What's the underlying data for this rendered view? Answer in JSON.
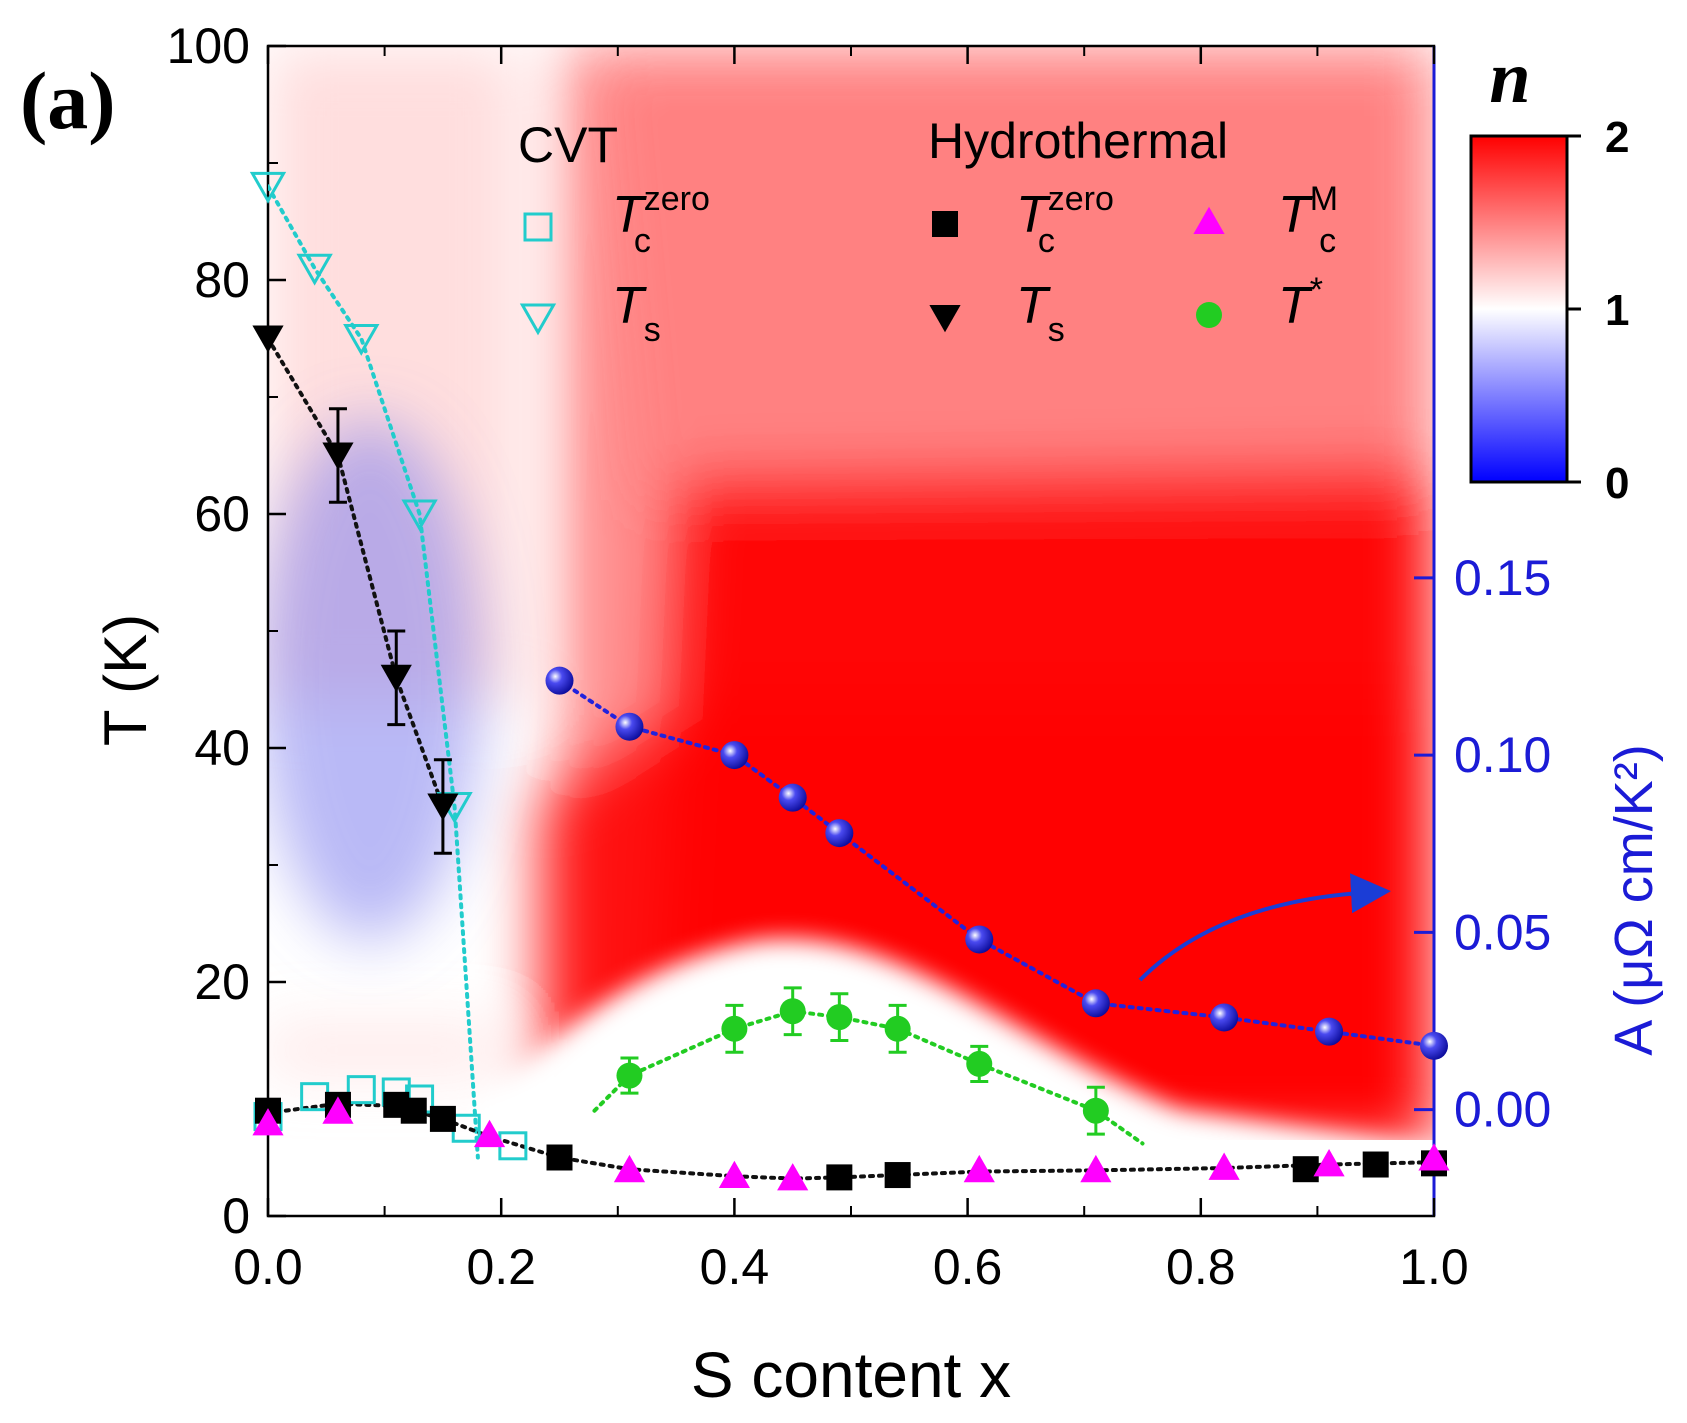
{
  "panel_label": "(a)",
  "chart_data": {
    "type": "scatter",
    "xlabel": "S content x",
    "ylabel_left": "T (K)",
    "ylabel_right": "A (μΩ cm/K²)",
    "xlim": [
      0.0,
      1.0
    ],
    "ylim_left": [
      0,
      100
    ],
    "ylim_right": [
      -0.03,
      0.3
    ],
    "x_ticks": [
      "0.0",
      "0.2",
      "0.4",
      "0.6",
      "0.8",
      "1.0"
    ],
    "y_ticks_left": [
      "0",
      "20",
      "40",
      "60",
      "80",
      "100"
    ],
    "y_ticks_right": [
      "0.00",
      "0.05",
      "0.10",
      "0.15"
    ],
    "colorbar": {
      "label": "n",
      "range": [
        0,
        2
      ],
      "ticks": [
        "0",
        "1",
        "2"
      ],
      "colors": [
        "#0000ff",
        "#ffffff",
        "#ff0000"
      ]
    },
    "legend": {
      "group_cvt": "CVT",
      "group_hydro": "Hydrothermal",
      "placement": "top"
    },
    "series": [
      {
        "key": "cvt_tc",
        "symbol": "T",
        "sub": "c",
        "sup": "zero",
        "marker": "open-square",
        "color": "#22cccc",
        "x": [
          0.0,
          0.04,
          0.08,
          0.11,
          0.13,
          0.17,
          0.21
        ],
        "y": [
          8.5,
          10.2,
          10.8,
          10.6,
          10.0,
          7.5,
          6.0
        ]
      },
      {
        "key": "cvt_ts",
        "symbol": "T",
        "sub": "s",
        "sup": "",
        "marker": "open-down-triangle",
        "color": "#22cccc",
        "x": [
          0.0,
          0.04,
          0.08,
          0.13,
          0.16
        ],
        "y": [
          88,
          81,
          75,
          60,
          35
        ]
      },
      {
        "key": "hydro_tc",
        "symbol": "T",
        "sub": "c",
        "sup": "zero",
        "marker": "filled-square",
        "color": "#000000",
        "x": [
          0.0,
          0.06,
          0.11,
          0.125,
          0.15,
          0.25,
          0.49,
          0.54,
          0.89,
          0.95,
          1.0
        ],
        "y": [
          9.0,
          9.5,
          9.5,
          9.0,
          8.3,
          5.0,
          3.3,
          3.5,
          4.0,
          4.4,
          4.5
        ]
      },
      {
        "key": "hydro_ts",
        "symbol": "T",
        "sub": "s",
        "sup": "",
        "marker": "filled-down-triangle",
        "color": "#000000",
        "x": [
          0.0,
          0.06,
          0.11,
          0.15
        ],
        "y": [
          75,
          65,
          46,
          35
        ],
        "yerr": [
          0,
          4,
          4,
          4
        ]
      },
      {
        "key": "hydro_tcm",
        "symbol": "T",
        "sub": "c",
        "sup": "M",
        "marker": "filled-up-triangle",
        "color": "#ff00ff",
        "x": [
          0.0,
          0.06,
          0.19,
          0.31,
          0.4,
          0.45,
          0.61,
          0.71,
          0.82,
          0.91,
          1.0
        ],
        "y": [
          8.0,
          9.0,
          7.0,
          4.0,
          3.5,
          3.3,
          4.0,
          4.0,
          4.2,
          4.5,
          5.0
        ]
      },
      {
        "key": "hydro_tstar",
        "symbol": "T",
        "sub": "",
        "sup": "*",
        "marker": "filled-circle",
        "color": "#22cc22",
        "x": [
          0.31,
          0.4,
          0.45,
          0.49,
          0.54,
          0.61,
          0.71
        ],
        "y": [
          12,
          16,
          17.5,
          17,
          16,
          13,
          9
        ],
        "yerr": [
          1.5,
          2,
          2,
          2,
          2,
          1.5,
          2
        ]
      },
      {
        "key": "A_coeff",
        "marker": "blue-sphere",
        "color": "#2222dd",
        "axis": "right",
        "x": [
          0.25,
          0.31,
          0.4,
          0.45,
          0.49,
          0.61,
          0.71,
          0.82,
          0.91,
          1.0
        ],
        "y": [
          0.121,
          0.108,
          0.1,
          0.088,
          0.078,
          0.048,
          0.03,
          0.026,
          0.022,
          0.018
        ]
      }
    ]
  }
}
